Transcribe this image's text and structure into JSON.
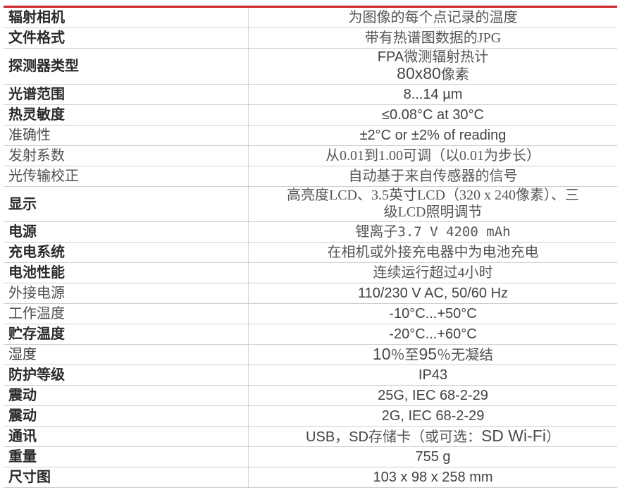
{
  "accent_color": "#cb2026",
  "divider_color": "#cfcfcf",
  "table": {
    "rows": [
      {
        "label": "辐射相机",
        "label_style": "sans",
        "value": [
          {
            "t": "为图像的每个点记录的温度",
            "s": "vserif"
          }
        ]
      },
      {
        "label": "文件格式",
        "label_style": "sans",
        "value": [
          {
            "t": "带有热谱图数据的JPG",
            "s": "vserif"
          }
        ]
      },
      {
        "label": "探测器类型",
        "label_style": "sans",
        "value": [
          {
            "t": "FPA",
            "s": "vsans"
          },
          {
            "t": "微测辐射热计",
            "s": "vserif"
          },
          {
            "t": "",
            "s": "br"
          },
          {
            "t": "80x80",
            "s": "vbig"
          },
          {
            "t": "像素",
            "s": "vserif"
          }
        ]
      },
      {
        "label": "光谱范围",
        "label_style": "sans",
        "value": [
          {
            "t": "8...14 µm",
            "s": "vsans"
          }
        ]
      },
      {
        "label": "热灵敏度",
        "label_style": "sans",
        "value": [
          {
            "t": "≤0.08°C at 30°C",
            "s": "vsans"
          }
        ]
      },
      {
        "label": "准确性",
        "label_style": "serif",
        "value": [
          {
            "t": "±2°C or ±2% of reading",
            "s": "vsans"
          }
        ]
      },
      {
        "label": "发射系数",
        "label_style": "serif",
        "value": [
          {
            "t": "从0.01到1.00可调（以0.01为步长）",
            "s": "vserif"
          }
        ]
      },
      {
        "label": "光传输校正",
        "label_style": "serif",
        "value": [
          {
            "t": "自动基于来自传感器的信号",
            "s": "vserif"
          }
        ]
      },
      {
        "label": "显示",
        "label_style": "sans",
        "value": [
          {
            "t": "高亮度LCD、3.5英寸LCD（320 x 240像素）、三",
            "s": "vserif"
          },
          {
            "t": "",
            "s": "br"
          },
          {
            "t": "级LCD照明调节",
            "s": "vserif"
          }
        ]
      },
      {
        "label": "电源",
        "label_style": "sans",
        "value": [
          {
            "t": "锂离子",
            "s": "vserif"
          },
          {
            "t": "3.7 V 4200 mAh",
            "s": "vmono"
          }
        ]
      },
      {
        "label": "充电系统",
        "label_style": "sans",
        "value": [
          {
            "t": "在相机或外接充电器中为电池充电",
            "s": "vserif"
          }
        ]
      },
      {
        "label": "电池性能",
        "label_style": "sans",
        "value": [
          {
            "t": "连续运行超过4小时",
            "s": "vserif"
          }
        ]
      },
      {
        "label": "外接电源",
        "label_style": "serif",
        "value": [
          {
            "t": "110/230 V AC, 50/60 Hz",
            "s": "vsans"
          }
        ]
      },
      {
        "label": "工作温度",
        "label_style": "serif",
        "value": [
          {
            "t": "-10°C...+50°C",
            "s": "vsans"
          }
        ]
      },
      {
        "label": "贮存温度",
        "label_style": "sans",
        "value": [
          {
            "t": "-20°C...+60°C",
            "s": "vsans"
          }
        ]
      },
      {
        "label": "湿度",
        "label_style": "sansreg",
        "value": [
          {
            "t": "10",
            "s": "vbig"
          },
          {
            "t": "％至",
            "s": "vserif"
          },
          {
            "t": "95",
            "s": "vbig"
          },
          {
            "t": "％无凝结",
            "s": "vserif"
          }
        ]
      },
      {
        "label": "防护等级",
        "label_style": "sans",
        "value": [
          {
            "t": "IP43",
            "s": "vsans"
          }
        ]
      },
      {
        "label": "震动",
        "label_style": "sans",
        "value": [
          {
            "t": "25G, IEC 68-2-29",
            "s": "vsans"
          }
        ]
      },
      {
        "label": "震动",
        "label_style": "sans",
        "value": [
          {
            "t": "2G, IEC 68-2-29",
            "s": "vsans"
          }
        ]
      },
      {
        "label": "通讯",
        "label_style": "sans",
        "value": [
          {
            "t": "USB",
            "s": "vsans"
          },
          {
            "t": "，",
            "s": "vserif"
          },
          {
            "t": "SD",
            "s": "vsans"
          },
          {
            "t": "存储卡（或可选：",
            "s": "vserif"
          },
          {
            "t": "SD Wi-Fi",
            "s": "vbig"
          },
          {
            "t": "）",
            "s": "vserif"
          }
        ]
      },
      {
        "label": "重量",
        "label_style": "sans",
        "value": [
          {
            "t": "755 g",
            "s": "vsans"
          }
        ]
      },
      {
        "label": "尺寸图",
        "label_style": "sans",
        "value": [
          {
            "t": "103 x 98 x 258 mm",
            "s": "vsans"
          }
        ]
      }
    ]
  }
}
